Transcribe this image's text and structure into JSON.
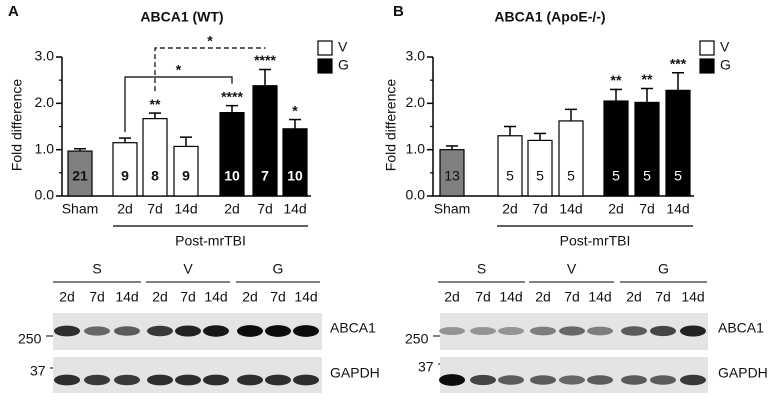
{
  "chart_data": [
    {
      "type": "bar",
      "panel": "A",
      "title": "ABCA1 (WT)",
      "ylabel": "Fold difference",
      "xlabel": "Post-mrTBI",
      "categories": [
        "Sham",
        "2d",
        "7d",
        "14d",
        "2d",
        "7d",
        "14d"
      ],
      "values": [
        0.97,
        1.15,
        1.67,
        1.07,
        1.8,
        2.38,
        1.45
      ],
      "errors": [
        0.05,
        0.1,
        0.12,
        0.2,
        0.15,
        0.35,
        0.2
      ],
      "n": [
        21,
        9,
        8,
        9,
        10,
        7,
        10
      ],
      "significance": [
        null,
        null,
        "**",
        null,
        "****",
        "****",
        "*"
      ],
      "colors": [
        "#808080",
        "#ffffff",
        "#ffffff",
        "#ffffff",
        "#000000",
        "#000000",
        "#000000"
      ],
      "legend": [
        {
          "name": "V",
          "color": "#ffffff"
        },
        {
          "name": "G",
          "color": "#000000"
        }
      ],
      "comparisons": [
        "*",
        "*"
      ],
      "ylim": [
        0,
        3
      ],
      "yticks": [
        {
          "value": 0,
          "label": "0.0"
        },
        {
          "value": 1,
          "label": "1.0"
        },
        {
          "value": 2,
          "label": "2.0"
        },
        {
          "value": 3,
          "label": "3.0"
        }
      ],
      "yminorticks": [
        0.5,
        1.5,
        2.5
      ]
    },
    {
      "type": "bar",
      "panel": "B",
      "title": "ABCA1 (ApoE-/-)",
      "ylabel": "Fold difference",
      "xlabel": "Post-mrTBI",
      "categories": [
        "Sham",
        "2d",
        "7d",
        "14d",
        "2d",
        "7d",
        "14d"
      ],
      "values": [
        1.0,
        1.3,
        1.2,
        1.62,
        2.05,
        2.02,
        2.28
      ],
      "errors": [
        0.08,
        0.2,
        0.15,
        0.25,
        0.25,
        0.3,
        0.38
      ],
      "n": [
        13,
        5,
        5,
        5,
        5,
        5,
        5
      ],
      "significance": [
        null,
        null,
        null,
        null,
        "**",
        "**",
        "***"
      ],
      "colors": [
        "#808080",
        "#ffffff",
        "#ffffff",
        "#ffffff",
        "#000000",
        "#000000",
        "#000000"
      ],
      "legend": [
        {
          "name": "V",
          "color": "#ffffff"
        },
        {
          "name": "G",
          "color": "#000000"
        }
      ],
      "ylim": [
        0,
        3
      ],
      "yticks": [
        {
          "value": 0,
          "label": "0.0"
        },
        {
          "value": 1,
          "label": "1.0"
        },
        {
          "value": 2,
          "label": "2.0"
        },
        {
          "value": 3,
          "label": "3.0"
        }
      ],
      "yminorticks": [
        0.5,
        1.5,
        2.5
      ]
    }
  ],
  "blots": [
    {
      "groups": [
        "S",
        "V",
        "G"
      ],
      "lanes": [
        "2d",
        "7d",
        "14d"
      ],
      "rows": [
        {
          "name": "ABCA1",
          "marker": "250"
        },
        {
          "name": "GAPDH",
          "marker": "37"
        }
      ]
    },
    {
      "groups": [
        "S",
        "V",
        "G"
      ],
      "lanes": [
        "2d",
        "7d",
        "14d"
      ],
      "rows": [
        {
          "name": "ABCA1",
          "marker": "250"
        },
        {
          "name": "GAPDH",
          "marker": "37"
        }
      ]
    }
  ]
}
